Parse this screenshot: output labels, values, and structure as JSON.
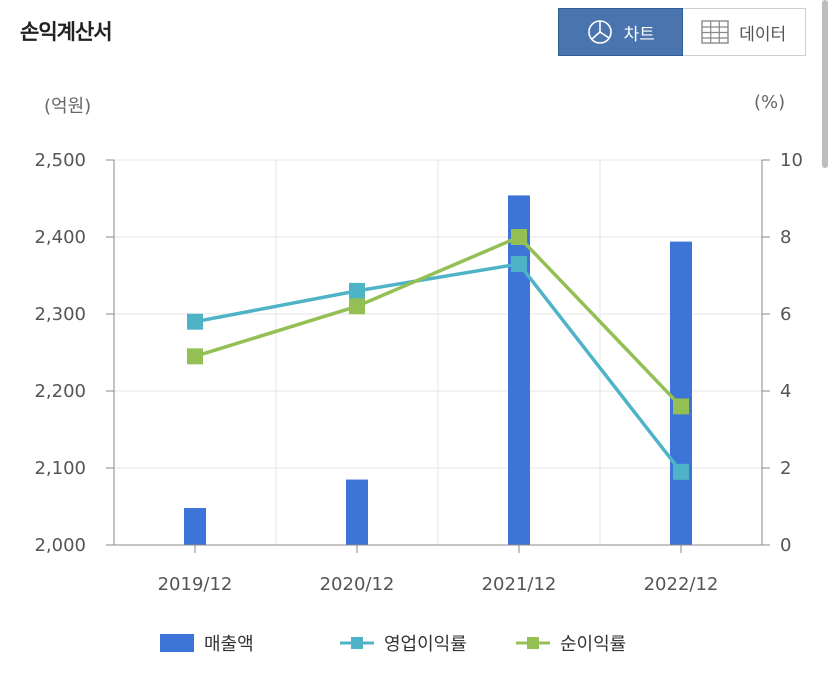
{
  "header": {
    "title": "손익계산서",
    "chart_tab_label": "차트",
    "data_tab_label": "데이터"
  },
  "units": {
    "left": "(억원)",
    "right": "(%)"
  },
  "colors": {
    "bar": "#3c74d8",
    "operating": "#4fb3c8",
    "net": "#94bf55",
    "toggle_active": "#4a74ad"
  },
  "chart_data": {
    "type": "bar+line",
    "categories": [
      "2019/12",
      "2020/12",
      "2021/12",
      "2022/12"
    ],
    "series": [
      {
        "name": "매출액",
        "type": "bar",
        "axis": "left",
        "values": [
          2048,
          2085,
          2454,
          2394
        ]
      },
      {
        "name": "영업이익률",
        "type": "line",
        "axis": "right",
        "values": [
          5.8,
          6.6,
          7.3,
          1.9
        ]
      },
      {
        "name": "순이익률",
        "type": "line",
        "axis": "right",
        "values": [
          4.9,
          6.2,
          8.0,
          3.6
        ]
      }
    ],
    "y_left": {
      "min": 2000,
      "max": 2500,
      "ticks": [
        "2,000",
        "2,100",
        "2,200",
        "2,300",
        "2,400",
        "2,500"
      ]
    },
    "y_right": {
      "min": 0,
      "max": 10,
      "ticks": [
        "0",
        "2",
        "4",
        "6",
        "8",
        "10"
      ]
    },
    "grid": true,
    "legend_position": "bottom"
  }
}
